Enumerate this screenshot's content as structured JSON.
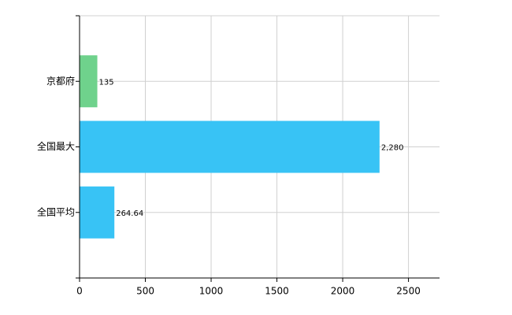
{
  "chart_data": {
    "type": "hbar",
    "categories": [
      "京都府",
      "全国最大",
      "全国平均"
    ],
    "values": [
      135,
      2280,
      264.64
    ],
    "value_labels": [
      "135",
      "2,280",
      "264.64"
    ],
    "colors": [
      "#6fd28c",
      "#38c3f5",
      "#38c3f5"
    ],
    "xlim": [
      0,
      2736
    ],
    "xticks": [
      0,
      500,
      1000,
      1500,
      2000,
      2500
    ],
    "grid": true
  }
}
